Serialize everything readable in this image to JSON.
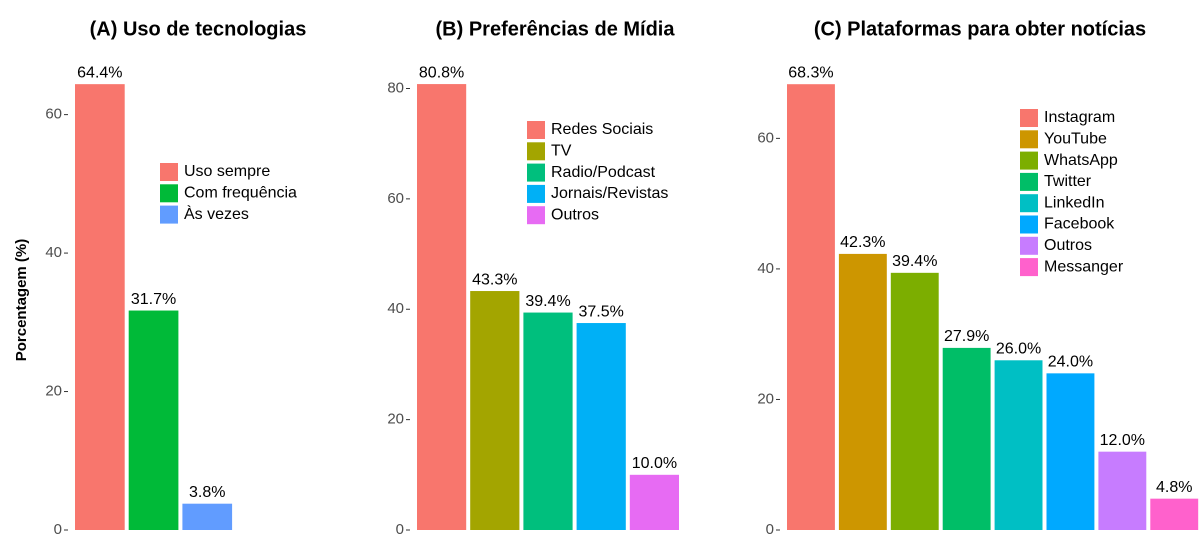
{
  "chart_data": [
    {
      "type": "bar",
      "title": "(A) Uso de tecnologias",
      "y_label": "Porcentagem (%)",
      "categories": [
        "Uso sempre",
        "Com frequência",
        "Às vezes"
      ],
      "values": [
        64.4,
        31.7,
        3.8
      ],
      "value_labels": [
        "64.4%",
        "31.7%",
        "3.8%"
      ],
      "colors": [
        "#F8766D",
        "#00BA38",
        "#619CFF"
      ],
      "ylim": [
        0,
        67.6
      ],
      "yticks": [
        0,
        20,
        40,
        60
      ],
      "legend": true
    },
    {
      "type": "bar",
      "title": "(B) Preferências de Mídia",
      "categories": [
        "Redes Sociais",
        "TV",
        "Radio/Podcast",
        "Jornais/Revistas",
        "Outros"
      ],
      "values": [
        80.8,
        43.3,
        39.4,
        37.5,
        10.0
      ],
      "value_labels": [
        "80.8%",
        "43.3%",
        "39.4%",
        "37.5%",
        "10.0%"
      ],
      "colors": [
        "#F8766D",
        "#A3A500",
        "#00BF7D",
        "#00B0F6",
        "#E76BF3"
      ],
      "ylim": [
        0,
        84.8
      ],
      "yticks": [
        0,
        20,
        40,
        60,
        80
      ],
      "legend": true
    },
    {
      "type": "bar",
      "title": "(C) Plataformas para obter notícias",
      "categories": [
        "Instagram",
        "YouTube",
        "WhatsApp",
        "Twitter",
        "LinkedIn",
        "Facebook",
        "Outros",
        "Messanger"
      ],
      "values": [
        68.3,
        42.3,
        39.4,
        27.9,
        26.0,
        24.0,
        12.0,
        4.8
      ],
      "value_labels": [
        "68.3%",
        "42.3%",
        "39.4%",
        "27.9%",
        "26.0%",
        "24.0%",
        "12.0%",
        "4.8%"
      ],
      "colors": [
        "#F8766D",
        "#CD9600",
        "#7CAE00",
        "#00BE67",
        "#00BFC4",
        "#00A9FF",
        "#C77CFF",
        "#FF61CC"
      ],
      "ylim": [
        0,
        71.7
      ],
      "yticks": [
        0,
        20,
        40,
        60
      ],
      "legend": true
    }
  ]
}
